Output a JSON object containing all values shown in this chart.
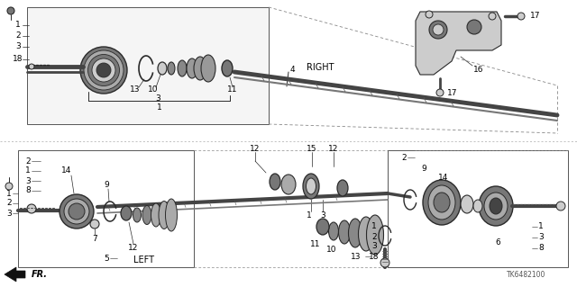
{
  "bg_color": "#ffffff",
  "diagram_code": "TK6482100",
  "line_color": "#2a2a2a",
  "text_color": "#000000",
  "gray_dark": "#444444",
  "gray_mid": "#777777",
  "gray_light": "#aaaaaa",
  "gray_lighter": "#cccccc",
  "dashed_color": "#888888",
  "right_label": "RIGHT",
  "left_label": "LEFT",
  "fr_label": "FR.",
  "font_size": 6.5
}
